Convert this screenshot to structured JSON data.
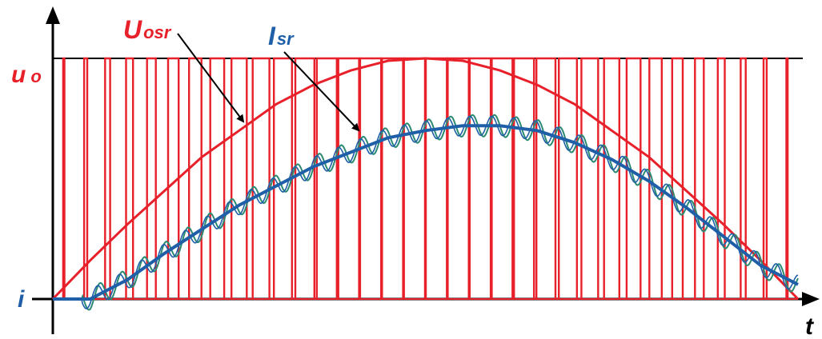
{
  "labels": {
    "voltage_main": "u",
    "voltage_sub": "o",
    "current_axis": "i",
    "time_axis": "t",
    "u_avg_main": "U",
    "u_avg_sub": "osr",
    "i_avg_main": "I",
    "i_avg_sub": "sr"
  },
  "colors": {
    "pwm": "#e8202a",
    "voltage_avg": "#e8202a",
    "current_avg": "#1f5fa8",
    "current_ripple": "#2a8a72",
    "axes": "#000000",
    "voltage_label": "#e8202a",
    "current_label": "#1f5fa8"
  },
  "chart_data": {
    "type": "line",
    "x": [
      0,
      0.05,
      0.1,
      0.15,
      0.2,
      0.25,
      0.3,
      0.35,
      0.4,
      0.45,
      0.5,
      0.55,
      0.6,
      0.65,
      0.7,
      0.75,
      0.8,
      0.85,
      0.9,
      0.95,
      1
    ],
    "series": [
      {
        "name": "Uosr",
        "values": [
          0,
          0.16,
          0.31,
          0.45,
          0.59,
          0.7,
          0.81,
          0.89,
          0.95,
          0.99,
          1,
          0.99,
          0.95,
          0.89,
          0.81,
          0.7,
          0.59,
          0.45,
          0.31,
          0.16,
          0
        ]
      },
      {
        "name": "Isr",
        "values": [
          0,
          0,
          0.08,
          0.19,
          0.29,
          0.39,
          0.47,
          0.55,
          0.61,
          0.67,
          0.7,
          0.72,
          0.72,
          0.7,
          0.65,
          0.58,
          0.49,
          0.38,
          0.26,
          0.14,
          0.06
        ]
      }
    ],
    "pwm_high_level": 1
  }
}
